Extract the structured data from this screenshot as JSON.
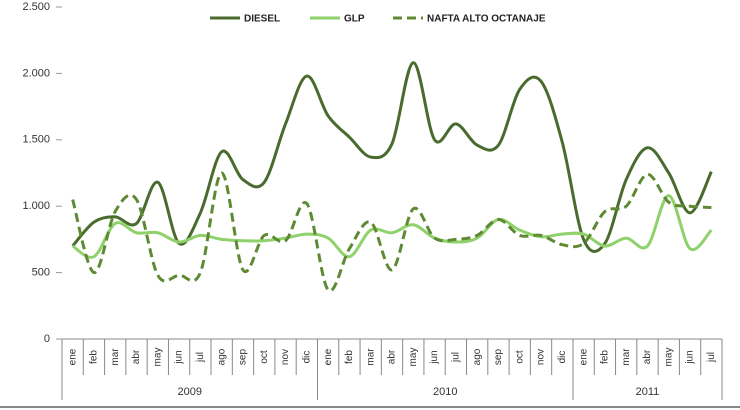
{
  "chart_data": {
    "type": "line",
    "groups": [
      {
        "name": "2009",
        "categories": [
          "ene",
          "feb",
          "mar",
          "abr",
          "may",
          "jun",
          "jul",
          "ago",
          "sep",
          "oct",
          "nov",
          "dic"
        ]
      },
      {
        "name": "2010",
        "categories": [
          "ene",
          "feb",
          "mar",
          "abr",
          "may",
          "jun",
          "jul",
          "ago",
          "sep",
          "oct",
          "nov",
          "dic"
        ]
      },
      {
        "name": "2011",
        "categories": [
          "ene",
          "feb",
          "mar",
          "abr",
          "may",
          "jun",
          "jul"
        ]
      }
    ],
    "series": [
      {
        "name": "DIESEL",
        "color": "#4a6b2e",
        "dashed": false,
        "values": [
          700,
          880,
          920,
          870,
          1180,
          720,
          950,
          1410,
          1200,
          1180,
          1620,
          1980,
          1680,
          1520,
          1370,
          1470,
          2080,
          1500,
          1620,
          1460,
          1460,
          1880,
          1940,
          1480,
          750,
          720,
          1200,
          1440,
          1250,
          950,
          1260
        ]
      },
      {
        "name": "GLP",
        "color": "#8fd16a",
        "dashed": false,
        "values": [
          700,
          620,
          870,
          800,
          800,
          730,
          780,
          750,
          740,
          740,
          760,
          790,
          760,
          620,
          820,
          800,
          860,
          760,
          730,
          760,
          900,
          820,
          770,
          790,
          790,
          700,
          760,
          700,
          1080,
          680,
          820
        ]
      },
      {
        "name": "NAFTA ALTO OCTANAJE",
        "color": "#5f8a34",
        "dashed": true,
        "values": [
          1050,
          500,
          960,
          1050,
          480,
          480,
          500,
          1250,
          520,
          780,
          740,
          1020,
          370,
          680,
          880,
          520,
          980,
          760,
          750,
          780,
          900,
          780,
          780,
          710,
          720,
          960,
          1000,
          1240,
          1030,
          1000,
          990
        ]
      }
    ],
    "ylim": [
      0,
      2500
    ],
    "yticks": [
      0,
      500,
      {
        "value": 1000,
        "label": "1.000"
      },
      {
        "value": 1500,
        "label": "1.500"
      },
      {
        "value": 2000,
        "label": "2.000"
      },
      {
        "value": 2500,
        "label": "2.500"
      }
    ],
    "legend": "top"
  }
}
